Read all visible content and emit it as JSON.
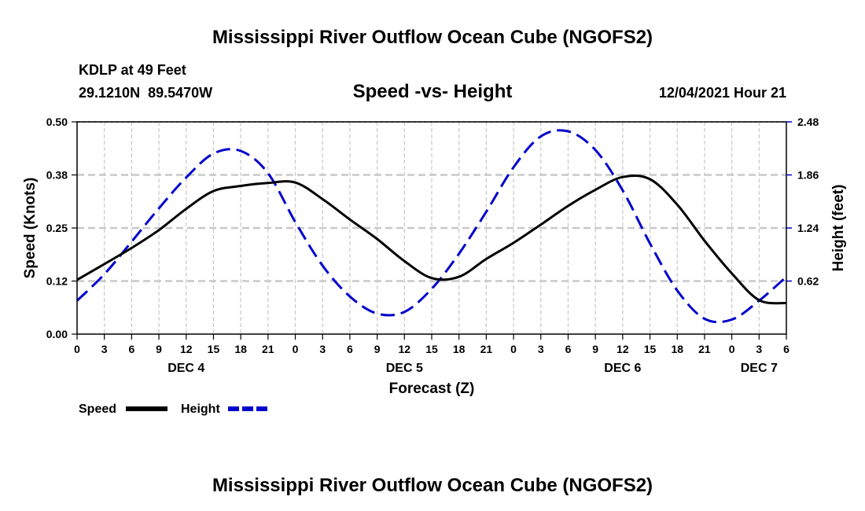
{
  "chart_data": {
    "type": "line",
    "title": "Mississippi River Outflow Ocean Cube (NGOFS2)",
    "subtitle": "Speed -vs- Height",
    "station": "KDLP at 49 Feet",
    "coordinates": "29.1210N  89.5470W",
    "datetime": "12/04/2021 Hour 21",
    "xlabel": "Forecast (Z)",
    "ylabel_left": "Speed (Knots)",
    "ylabel_right": "Height (feet)",
    "grid": true,
    "x_range": [
      0,
      78
    ],
    "x_ticks": [
      0,
      3,
      6,
      9,
      12,
      15,
      18,
      21,
      24,
      27,
      30,
      33,
      36,
      39,
      42,
      45,
      48,
      51,
      54,
      57,
      60,
      63,
      66,
      69,
      72,
      75,
      78
    ],
    "x_tick_labels": [
      "0",
      "3",
      "6",
      "9",
      "12",
      "15",
      "18",
      "21",
      "0",
      "3",
      "6",
      "9",
      "12",
      "15",
      "18",
      "21",
      "0",
      "3",
      "6",
      "9",
      "12",
      "15",
      "18",
      "21",
      "0",
      "3",
      "6"
    ],
    "day_labels": [
      {
        "label": "DEC 4",
        "x": 12
      },
      {
        "label": "DEC 5",
        "x": 36
      },
      {
        "label": "DEC 6",
        "x": 60
      },
      {
        "label": "DEC 7",
        "x": 75
      }
    ],
    "ylim_left": [
      0,
      0.5
    ],
    "y_ticks_left": [
      0,
      0.125,
      0.25,
      0.375,
      0.5
    ],
    "y_tick_labels_left": [
      "0.00",
      "0.12",
      "0.25",
      "0.38",
      "0.50"
    ],
    "ylim_right": [
      0,
      2.48
    ],
    "y_ticks_right": [
      0.62,
      1.24,
      1.86,
      2.48
    ],
    "y_tick_labels_right": [
      "0.62",
      "1.24",
      "1.86",
      "2.48"
    ],
    "legend": [
      {
        "label": "Speed",
        "color": "#000000",
        "style": "solid"
      },
      {
        "label": "Height",
        "color": "#0000cc",
        "style": "dashed"
      }
    ],
    "series": [
      {
        "name": "Speed",
        "axis": "left",
        "color": "#000000",
        "x": [
          0,
          3,
          6,
          9,
          12,
          15,
          18,
          21,
          24,
          27,
          30,
          33,
          36,
          39,
          42,
          45,
          48,
          51,
          54,
          57,
          60,
          63,
          66,
          69,
          72,
          75,
          78
        ],
        "values": [
          0.128,
          0.165,
          0.203,
          0.245,
          0.295,
          0.337,
          0.349,
          0.356,
          0.357,
          0.318,
          0.27,
          0.224,
          0.172,
          0.132,
          0.135,
          0.177,
          0.215,
          0.258,
          0.302,
          0.34,
          0.37,
          0.365,
          0.305,
          0.22,
          0.143,
          0.08,
          0.073
        ]
      },
      {
        "name": "Height",
        "axis": "right",
        "color": "#0000cc",
        "x": [
          0,
          3,
          6,
          9,
          12,
          15,
          18,
          21,
          24,
          27,
          30,
          33,
          36,
          39,
          42,
          45,
          48,
          51,
          54,
          57,
          60,
          63,
          66,
          69,
          72,
          75,
          78
        ],
        "values": [
          0.39,
          0.7,
          1.08,
          1.47,
          1.83,
          2.11,
          2.14,
          1.88,
          1.31,
          0.8,
          0.44,
          0.24,
          0.26,
          0.53,
          0.94,
          1.43,
          1.95,
          2.31,
          2.37,
          2.15,
          1.68,
          1.06,
          0.51,
          0.18,
          0.17,
          0.39,
          0.67
        ]
      }
    ]
  },
  "footer_title": "Mississippi River Outflow Ocean Cube (NGOFS2)"
}
